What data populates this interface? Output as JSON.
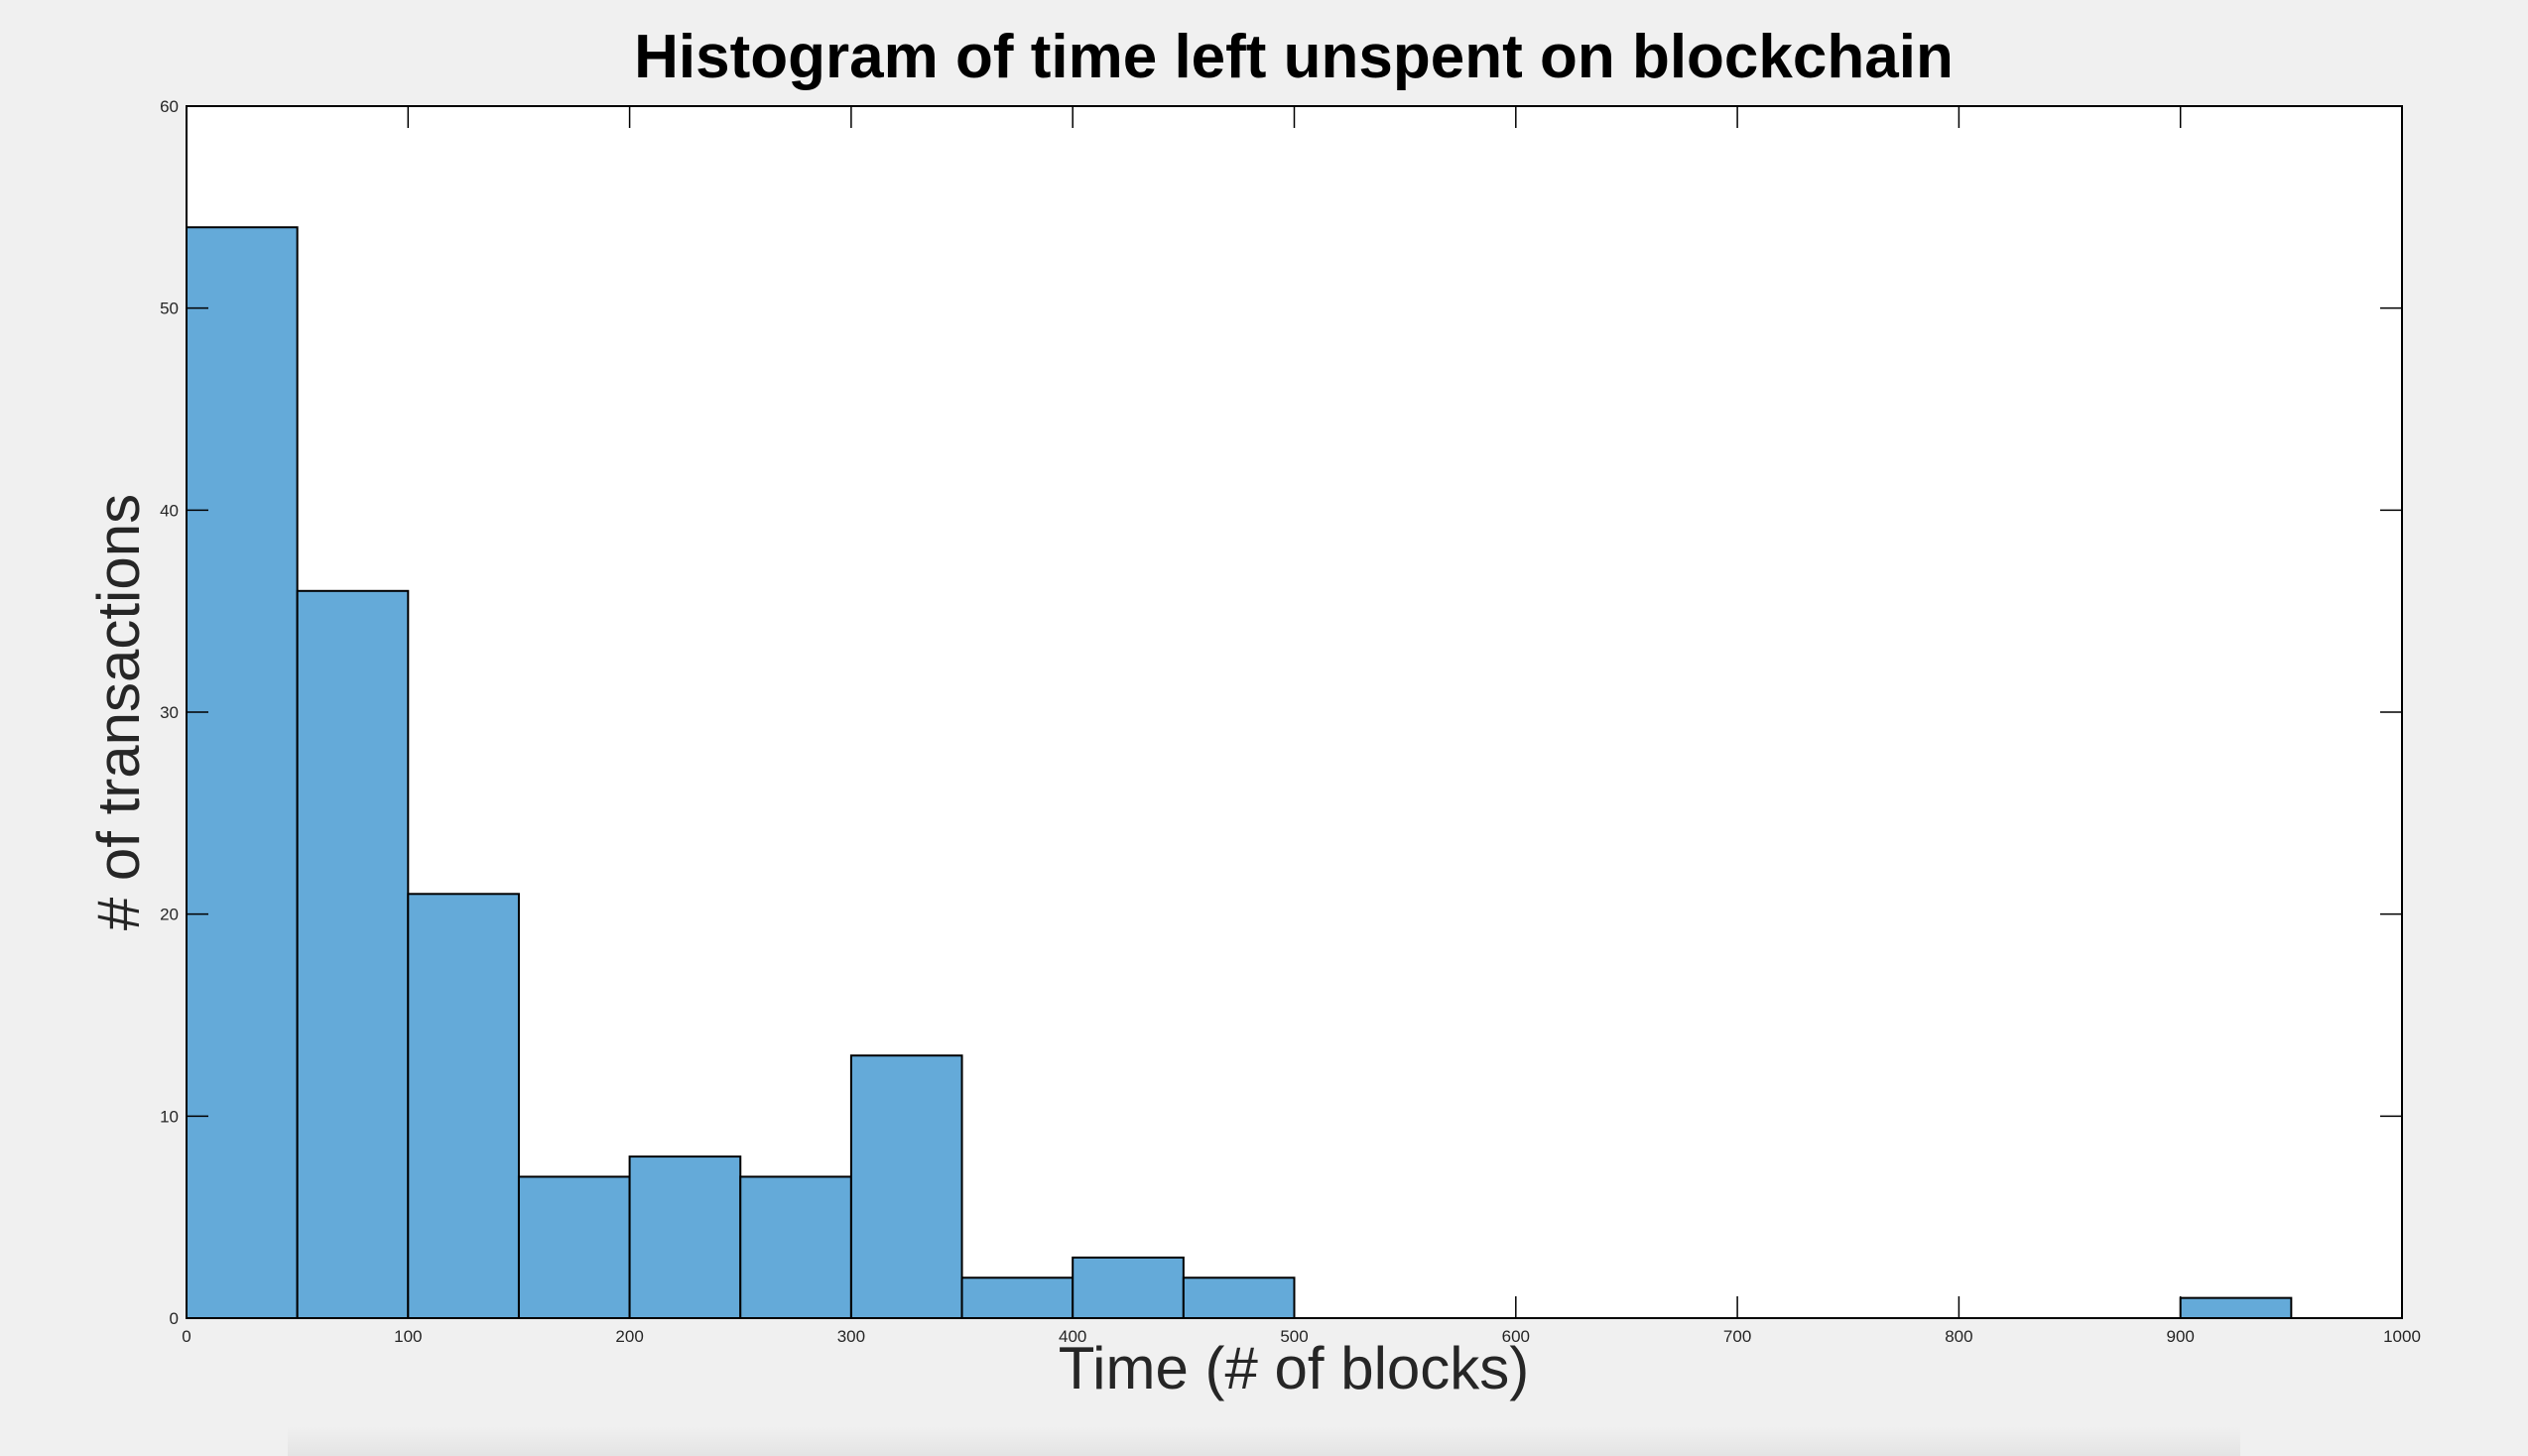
{
  "chart_data": {
    "type": "bar",
    "title": "Histogram of time left unspent on blockchain",
    "xlabel": "Time (# of blocks)",
    "ylabel": "# of transactions",
    "xlim": [
      0,
      1000
    ],
    "ylim": [
      0,
      60
    ],
    "xticks": [
      0,
      100,
      200,
      300,
      400,
      500,
      600,
      700,
      800,
      900,
      1000
    ],
    "yticks": [
      0,
      10,
      20,
      30,
      40,
      50,
      60
    ],
    "bin_edges": [
      0,
      50,
      100,
      150,
      200,
      250,
      300,
      350,
      400,
      450,
      500,
      550,
      600,
      650,
      700,
      750,
      800,
      850,
      900,
      950
    ],
    "values": [
      54,
      36,
      21,
      7,
      8,
      7,
      13,
      2,
      3,
      2,
      0,
      0,
      0,
      0,
      0,
      0,
      0,
      0,
      1
    ],
    "grid": false,
    "colors": {
      "bar_fill": "#64aad9",
      "bar_edge": "#000000",
      "axes_background": "#ffffff",
      "figure_background": "#f0f0f0"
    }
  }
}
